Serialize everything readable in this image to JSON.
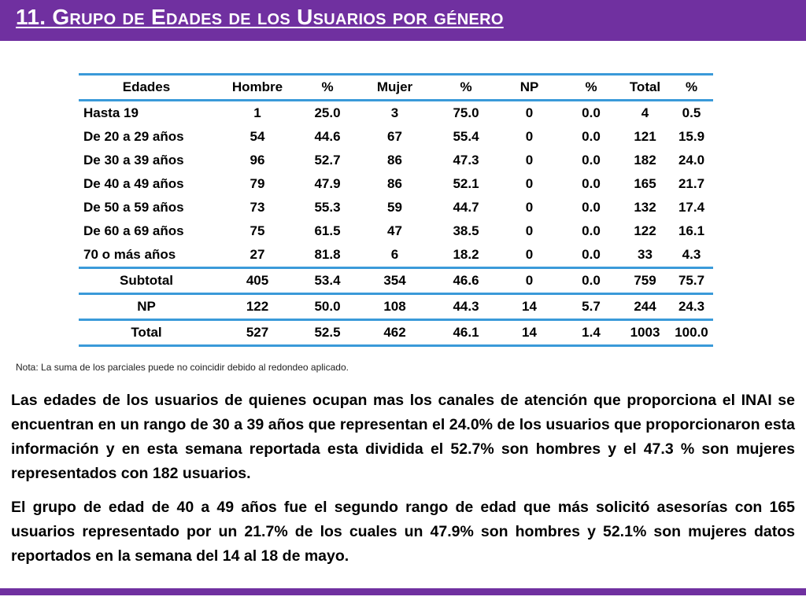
{
  "title": "11. Grupo de  Edades de los Usuarios por género",
  "table": {
    "headers": [
      "Edades",
      "Hombre",
      "%",
      "Mujer",
      "%",
      "NP",
      "%",
      "Total",
      "%"
    ],
    "rows": [
      [
        "Hasta 19",
        "1",
        "25.0",
        "3",
        "75.0",
        "0",
        "0.0",
        "4",
        "0.5"
      ],
      [
        "De 20 a 29 años",
        "54",
        "44.6",
        "67",
        "55.4",
        "0",
        "0.0",
        "121",
        "15.9"
      ],
      [
        "De 30 a 39 años",
        "96",
        "52.7",
        "86",
        "47.3",
        "0",
        "0.0",
        "182",
        "24.0"
      ],
      [
        "De 40 a 49 años",
        "79",
        "47.9",
        "86",
        "52.1",
        "0",
        "0.0",
        "165",
        "21.7"
      ],
      [
        "De 50 a 59 años",
        "73",
        "55.3",
        "59",
        "44.7",
        "0",
        "0.0",
        "132",
        "17.4"
      ],
      [
        "De 60 a 69 años",
        "75",
        "61.5",
        "47",
        "38.5",
        "0",
        "0.0",
        "122",
        "16.1"
      ],
      [
        "70 o más años",
        "27",
        "81.8",
        "6",
        "18.2",
        "0",
        "0.0",
        "33",
        "4.3"
      ],
      [
        "Subtotal",
        "405",
        "53.4",
        "354",
        "46.6",
        "0",
        "0.0",
        "759",
        "75.7"
      ],
      [
        "NP",
        "122",
        "50.0",
        "108",
        "44.3",
        "14",
        "5.7",
        "244",
        "24.3"
      ],
      [
        "Total",
        "527",
        "52.5",
        "462",
        "46.1",
        "14",
        "1.4",
        "1003",
        "100.0"
      ]
    ]
  },
  "note": "Nota: La suma de los parciales puede no coincidir debido al redondeo aplicado.",
  "paragraphs": [
    "Las edades de los usuarios de quienes ocupan mas los canales de atención que proporciona el INAI se encuentran en un rango de 30 a 39 años que representan el  24.0% de los usuarios que proporcionaron esta información y en esta semana reportada esta dividida el 52.7% son hombres y el 47.3 % son mujeres representados con 182 usuarios.",
    "El grupo de edad de 40 a 49 años fue el segundo rango de edad que más solicitó asesorías con 165 usuarios representado por un 21.7% de los cuales un 47.9% son hombres y 52.1% son mujeres datos reportados en la semana del 14 al 18 de mayo."
  ],
  "colors": {
    "header_bar": "#7030a0",
    "table_rules": "#3a9ad9"
  }
}
